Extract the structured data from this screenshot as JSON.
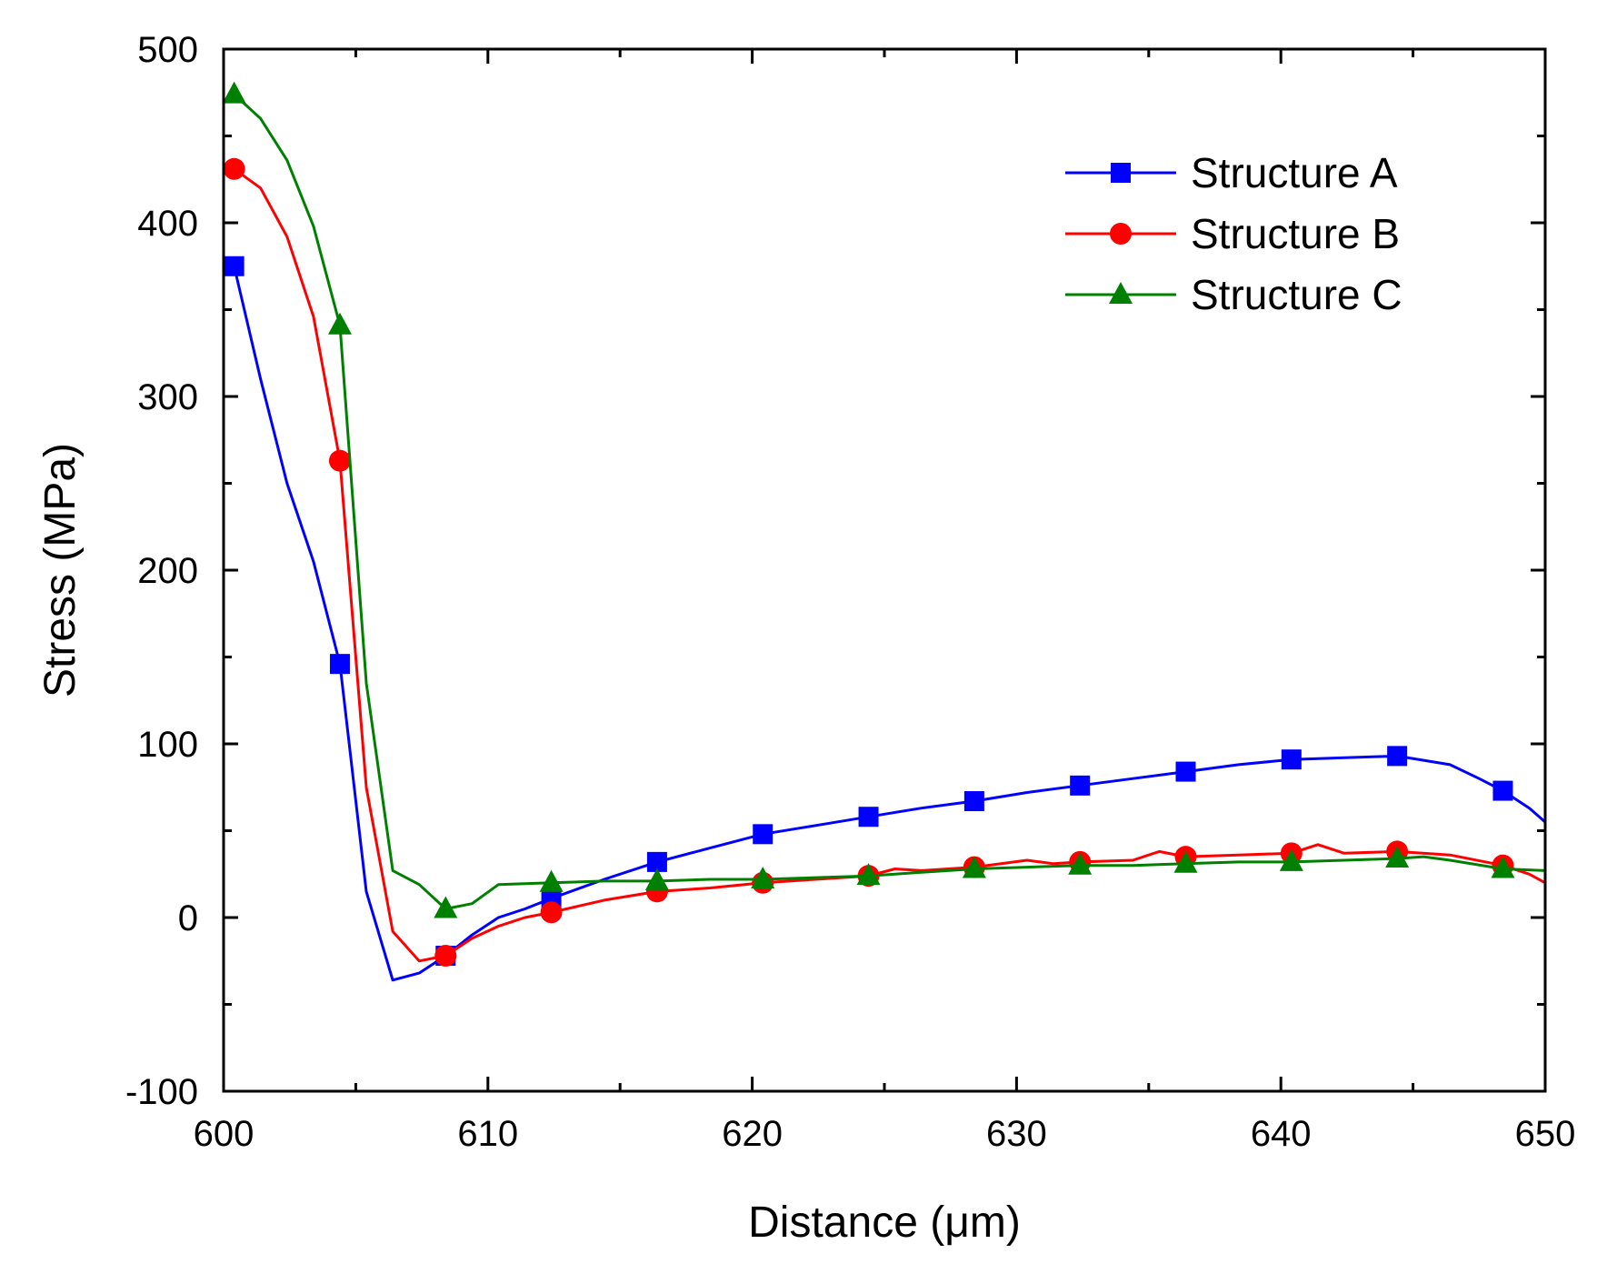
{
  "chart_data": {
    "type": "line",
    "title": "",
    "xlabel": "Distance (μm)",
    "ylabel": "Stress (MPa)",
    "xlim": [
      600,
      650
    ],
    "ylim": [
      -100,
      500
    ],
    "xticks": [
      600,
      610,
      620,
      630,
      640,
      650
    ],
    "yticks": [
      -100,
      0,
      100,
      200,
      300,
      400,
      500
    ],
    "grid": false,
    "legend_position": "top-right",
    "series": [
      {
        "name": "Structure A",
        "color": "#0000ff",
        "marker": "square",
        "x": [
          600.4,
          601.4,
          602.4,
          603.4,
          604.4,
          605.4,
          606.4,
          607.4,
          608.4,
          609.4,
          610.4,
          611.4,
          612.4,
          614.4,
          616.4,
          618.4,
          620.4,
          622.4,
          624.4,
          626.4,
          628.4,
          630.4,
          632.4,
          634.4,
          636.4,
          638.4,
          640.4,
          642.4,
          644.4,
          646.4,
          647.5,
          648.4,
          649.4,
          650
        ],
        "y": [
          375,
          310,
          250,
          205,
          146,
          15,
          -36,
          -32,
          -22,
          -10,
          0,
          5,
          11,
          22,
          32,
          40,
          48,
          53,
          58,
          63,
          67,
          72,
          76,
          80,
          84,
          88,
          91,
          92,
          93,
          88,
          80,
          73,
          63,
          55
        ],
        "marker_x": [
          600.4,
          604.4,
          608.4,
          612.4,
          616.4,
          620.4,
          624.4,
          628.4,
          632.4,
          636.4,
          640.4,
          644.4,
          648.4
        ],
        "marker_y": [
          375,
          146,
          -22,
          11,
          32,
          48,
          58,
          67,
          76,
          84,
          91,
          93,
          73
        ]
      },
      {
        "name": "Structure B",
        "color": "#ff0000",
        "marker": "circle",
        "x": [
          600.4,
          601.4,
          602.4,
          603.4,
          604.4,
          605.4,
          606.4,
          607.4,
          608.4,
          609.4,
          610.4,
          611.4,
          612.4,
          614.4,
          616.4,
          618.4,
          620.4,
          622.4,
          624.4,
          625.4,
          626.4,
          628.4,
          630.4,
          631.4,
          632.4,
          634.4,
          635.4,
          636.4,
          638.4,
          640.4,
          641.4,
          642.4,
          644.4,
          646.4,
          648.4,
          649.4,
          650
        ],
        "y": [
          431,
          420,
          392,
          346,
          263,
          75,
          -8,
          -25,
          -22,
          -12,
          -5,
          0,
          3,
          10,
          15,
          17,
          20,
          22,
          24,
          28,
          27,
          29,
          33,
          31,
          32,
          33,
          38,
          35,
          36,
          37,
          42,
          37,
          38,
          36,
          30,
          25,
          20
        ],
        "marker_x": [
          600.4,
          604.4,
          608.4,
          612.4,
          616.4,
          620.4,
          624.4,
          628.4,
          632.4,
          636.4,
          640.4,
          644.4,
          648.4
        ],
        "marker_y": [
          431,
          263,
          -22,
          3,
          15,
          20,
          24,
          29,
          32,
          35,
          37,
          38,
          30
        ]
      },
      {
        "name": "Structure C",
        "color": "#008000",
        "marker": "triangle",
        "x": [
          600.4,
          601.4,
          602.4,
          603.4,
          604.4,
          605.4,
          606.4,
          607.4,
          608.4,
          609.4,
          610.4,
          612.4,
          614.4,
          616.4,
          618.4,
          620.4,
          622.4,
          624.4,
          626.4,
          628.4,
          630.4,
          632.4,
          634.4,
          636.4,
          638.4,
          640.4,
          642.4,
          644.4,
          645.4,
          646.4,
          648.4,
          650
        ],
        "y": [
          474,
          460,
          436,
          398,
          341,
          135,
          27,
          19,
          5,
          8,
          19,
          20,
          21,
          21,
          22,
          22,
          23,
          24,
          26,
          28,
          29,
          30,
          30,
          31,
          32,
          32,
          33,
          34,
          35,
          33,
          28,
          27
        ],
        "marker_x": [
          600.4,
          604.4,
          608.4,
          612.4,
          616.4,
          620.4,
          624.4,
          628.4,
          632.4,
          636.4,
          640.4,
          644.4,
          648.4
        ],
        "marker_y": [
          474,
          341,
          5,
          20,
          21,
          22,
          24,
          28,
          30,
          31,
          32,
          34,
          28
        ]
      }
    ]
  }
}
